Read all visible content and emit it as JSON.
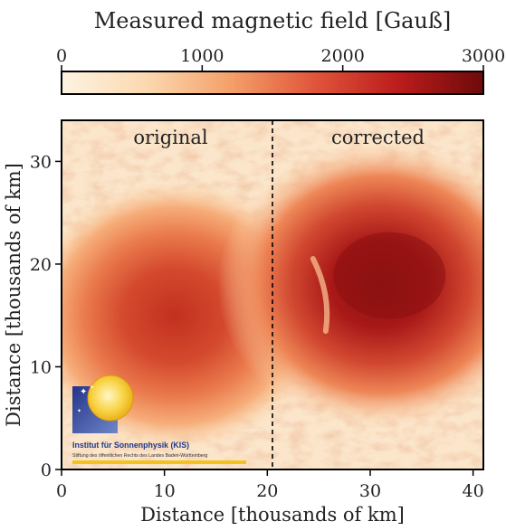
{
  "chart_data": {
    "type": "heatmap",
    "colorbar": {
      "title": "Measured magnetic field [Gauß]",
      "ticks": [
        0,
        1000,
        2000,
        3000
      ],
      "tick_labels": [
        "0",
        "1000",
        "2000",
        "3000"
      ],
      "range": [
        0,
        3000
      ],
      "colormap": [
        "#fdf3e2",
        "#fbd9b0",
        "#f4a06a",
        "#e0553a",
        "#bb1c1c",
        "#6e0a0a"
      ]
    },
    "panels": [
      {
        "label": "original",
        "x_range": [
          0,
          20.5
        ],
        "sunspot_center": [
          11,
          15
        ],
        "peak_field": 1900
      },
      {
        "label": "corrected",
        "x_range": [
          20.5,
          41
        ],
        "sunspot_center": [
          31,
          18
        ],
        "peak_field": 2700
      }
    ],
    "divider_x": 20.5,
    "xlabel": "Distance [thousands of km]",
    "ylabel": "Distance [thousands of km]",
    "xlim": [
      0,
      41
    ],
    "ylim": [
      0,
      34
    ],
    "xticks": [
      0,
      10,
      20,
      30,
      40
    ],
    "yticks": [
      0,
      10,
      20,
      30
    ],
    "xtick_labels": [
      "0",
      "10",
      "20",
      "30",
      "40"
    ],
    "ytick_labels": [
      "0",
      "10",
      "20",
      "30"
    ]
  },
  "logo": {
    "name": "Institut für Sonnenphysik (KIS)",
    "subtitle": "Stiftung des öffentlichen Rechts des Landes Baden-Württemberg",
    "colors": {
      "blue": "#2c3e95",
      "sun": "#f6c21c",
      "text": "#1e3a8a"
    }
  }
}
